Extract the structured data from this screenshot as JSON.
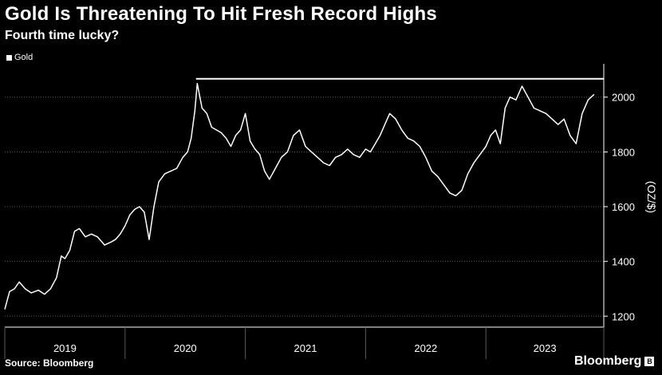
{
  "header": {
    "title": "Gold Is Threatening To Hit Fresh Record Highs",
    "subtitle": "Fourth time lucky?"
  },
  "footer": {
    "source": "Source: Bloomberg",
    "brand": "Bloomberg"
  },
  "colors": {
    "background": "#000000",
    "line": "#ffffff",
    "grid": "#5a5a5a"
  },
  "chart_data": {
    "type": "line",
    "title": "Gold Is Threatening To Hit Fresh Record Highs",
    "subtitle": "Fourth time lucky?",
    "xlabel": "",
    "ylabel": "(OZ/$)",
    "legend": {
      "placement": "top-left",
      "entries": [
        "Gold"
      ]
    },
    "grid": {
      "horizontal": true,
      "vertical": false
    },
    "ylim": [
      1160,
      2110
    ],
    "yticks": [
      1200,
      1400,
      1600,
      1800,
      2000
    ],
    "xlim": [
      2019.0,
      2023.98
    ],
    "x_categories": [
      "2019",
      "2020",
      "2021",
      "2022",
      "2023"
    ],
    "reference_line": {
      "label": "",
      "value": 2067
    },
    "series": [
      {
        "name": "Gold",
        "x": [
          2019.0,
          2019.04,
          2019.08,
          2019.12,
          2019.17,
          2019.22,
          2019.28,
          2019.33,
          2019.38,
          2019.43,
          2019.47,
          2019.5,
          2019.54,
          2019.58,
          2019.62,
          2019.67,
          2019.72,
          2019.77,
          2019.83,
          2019.88,
          2019.92,
          2019.96,
          2020.0,
          2020.04,
          2020.08,
          2020.12,
          2020.16,
          2020.2,
          2020.24,
          2020.28,
          2020.33,
          2020.38,
          2020.43,
          2020.48,
          2020.52,
          2020.55,
          2020.58,
          2020.6,
          2020.64,
          2020.68,
          2020.72,
          2020.76,
          2020.8,
          2020.84,
          2020.88,
          2020.92,
          2020.96,
          2021.0,
          2021.04,
          2021.08,
          2021.12,
          2021.16,
          2021.2,
          2021.25,
          2021.3,
          2021.35,
          2021.4,
          2021.45,
          2021.5,
          2021.55,
          2021.6,
          2021.65,
          2021.7,
          2021.75,
          2021.8,
          2021.85,
          2021.9,
          2021.95,
          2022.0,
          2022.04,
          2022.08,
          2022.12,
          2022.16,
          2022.2,
          2022.25,
          2022.3,
          2022.35,
          2022.4,
          2022.45,
          2022.5,
          2022.55,
          2022.6,
          2022.65,
          2022.7,
          2022.75,
          2022.8,
          2022.85,
          2022.9,
          2022.95,
          2023.0,
          2023.04,
          2023.08,
          2023.12,
          2023.16,
          2023.2,
          2023.25,
          2023.3,
          2023.35,
          2023.4,
          2023.45,
          2023.5,
          2023.55,
          2023.6,
          2023.65,
          2023.7,
          2023.75,
          2023.8,
          2023.85,
          2023.9
        ],
        "values": [
          1225,
          1290,
          1300,
          1325,
          1300,
          1285,
          1295,
          1280,
          1300,
          1340,
          1420,
          1410,
          1440,
          1510,
          1520,
          1490,
          1500,
          1490,
          1460,
          1470,
          1480,
          1500,
          1530,
          1570,
          1590,
          1600,
          1580,
          1480,
          1600,
          1690,
          1720,
          1730,
          1740,
          1780,
          1800,
          1850,
          1950,
          2050,
          1960,
          1940,
          1890,
          1880,
          1870,
          1850,
          1820,
          1860,
          1880,
          1940,
          1840,
          1810,
          1790,
          1730,
          1700,
          1740,
          1780,
          1800,
          1860,
          1880,
          1820,
          1800,
          1780,
          1760,
          1750,
          1780,
          1790,
          1810,
          1790,
          1780,
          1810,
          1800,
          1830,
          1860,
          1900,
          1940,
          1920,
          1880,
          1850,
          1840,
          1820,
          1780,
          1730,
          1710,
          1680,
          1650,
          1640,
          1660,
          1720,
          1760,
          1790,
          1820,
          1860,
          1880,
          1830,
          1960,
          2000,
          1990,
          2040,
          2000,
          1960,
          1950,
          1940,
          1920,
          1900,
          1920,
          1860,
          1830,
          1940,
          1990,
          2010
        ]
      }
    ]
  }
}
